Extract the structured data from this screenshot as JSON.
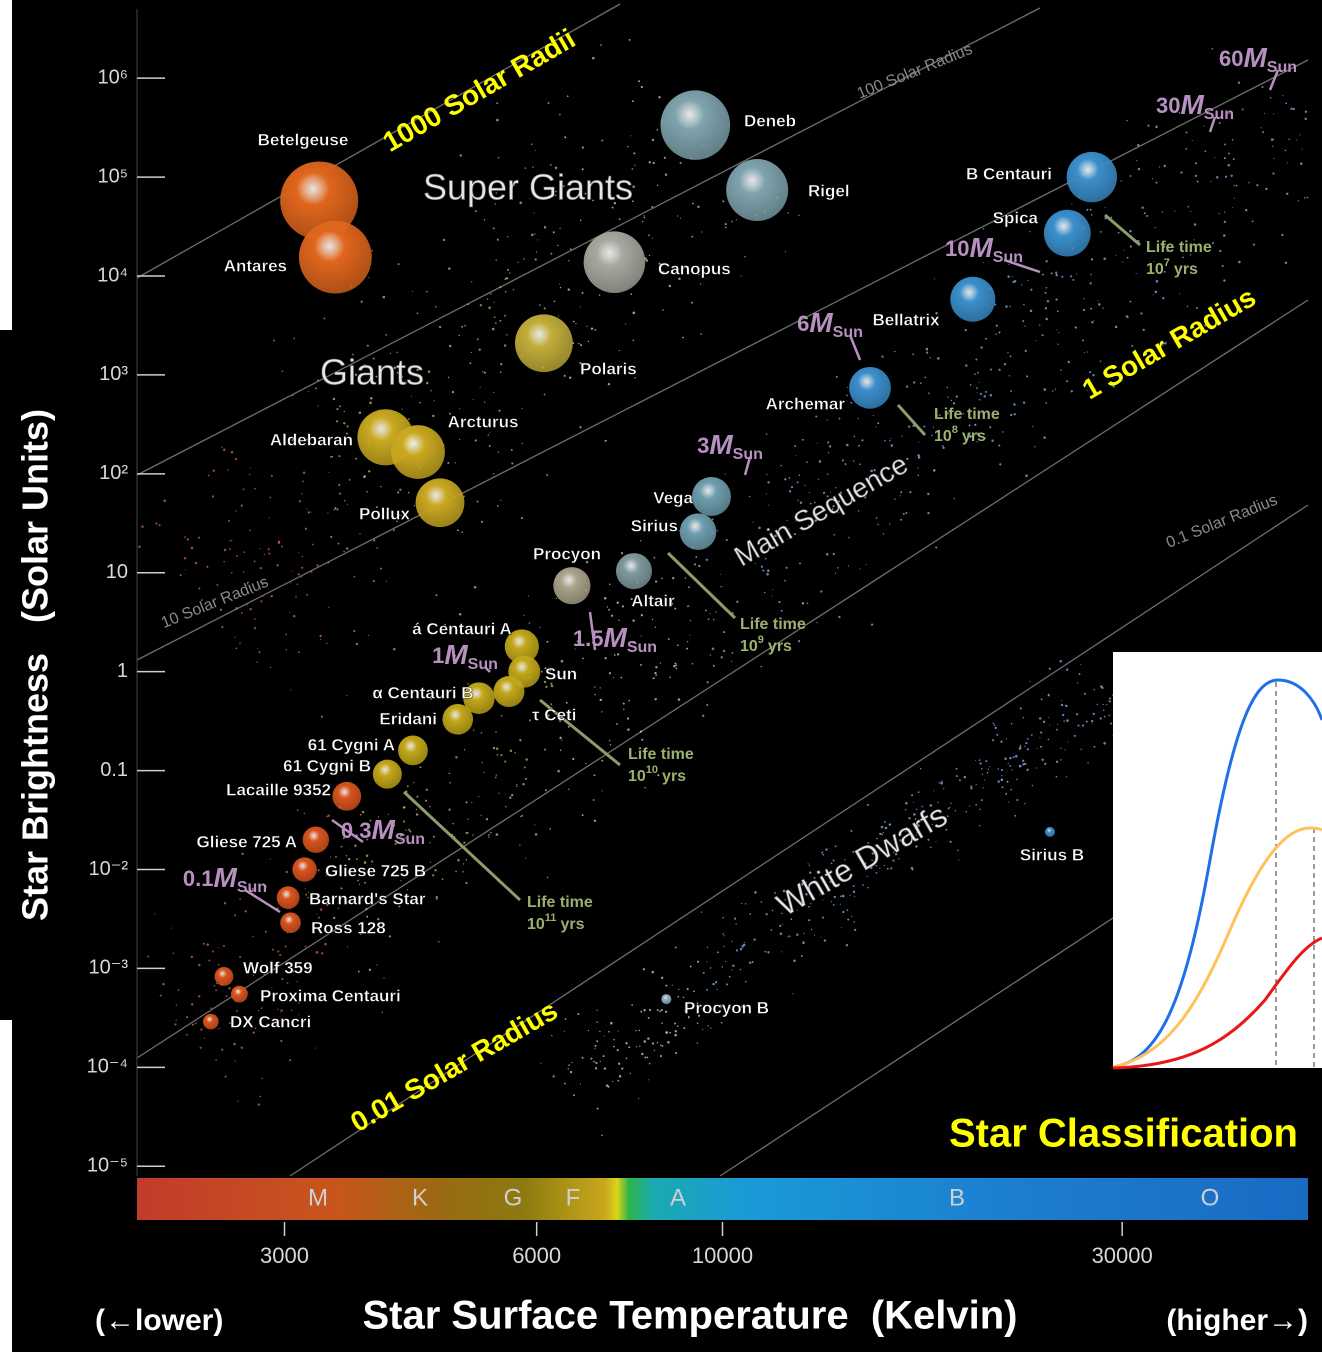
{
  "chart_data": {
    "type": "scatter",
    "title": "Star Classification",
    "x_title": "Star Surface Temperature  (Kelvin)",
    "y_title": "Star Brightness   (Solar Units)",
    "x_low": "(←lower)",
    "x_high": "(higher→)",
    "xscale": "log",
    "yscale": "log",
    "xlim": [
      2000,
      50000
    ],
    "ylim": [
      3e-06,
      5000000
    ],
    "xticks": [
      3000,
      6000,
      10000,
      30000
    ],
    "yticks": [
      {
        "value": 1000000,
        "label": "10⁶"
      },
      {
        "value": 100000,
        "label": "10⁵"
      },
      {
        "value": 10000,
        "label": "10⁴"
      },
      {
        "value": 1000,
        "label": "10³"
      },
      {
        "value": 100,
        "label": "10²"
      },
      10,
      1,
      0.1,
      {
        "value": 0.01,
        "label": "10⁻²"
      },
      {
        "value": 0.001,
        "label": "10⁻³"
      },
      {
        "value": 0.0001,
        "label": "10⁻⁴"
      },
      {
        "value": 1e-05,
        "label": "10⁻⁵"
      }
    ],
    "point_labels": [
      "Betelgeuse",
      "Antares",
      "Deneb",
      "Rigel",
      "Canopus",
      "Polaris",
      "B Centauri",
      "Spica",
      "Bellatrix",
      "Archemar",
      "Aldebaran",
      "Arcturus",
      "Pollux",
      "Vega",
      "Sirius",
      "Procyon",
      "Altair",
      "á Centauri A",
      "Sun",
      "α Centauri B",
      "τ Ceti",
      "Eridani",
      "61 Cygni A",
      "61 Cygni B",
      "Lacaille 9352",
      "Gliese 725 A",
      "Gliese 725 B",
      "Barnard's Star",
      "Ross 128",
      "Wolf 359",
      "Proxima Centauri",
      "DX Cancri",
      "Sirius B",
      "Procyon B"
    ],
    "x": [
      3300,
      3450,
      9280,
      11000,
      7430,
      6120,
      27600,
      25800,
      19900,
      15000,
      3960,
      4330,
      4600,
      9700,
      9350,
      6610,
      7840,
      5760,
      5800,
      5120,
      5560,
      4830,
      4270,
      3980,
      3560,
      3270,
      3170,
      3030,
      3050,
      2540,
      2650,
      2450,
      24600,
      8570
    ],
    "values": [
      58000,
      15500,
      335000,
      74000,
      13800,
      2090,
      100000,
      27100,
      5820,
      740,
      234,
      166,
      51,
      59,
      26,
      7.4,
      10.4,
      1.8,
      1,
      0.54,
      0.63,
      0.33,
      0.16,
      0.092,
      0.055,
      0.02,
      0.01,
      0.0052,
      0.0029,
      0.00083,
      0.00055,
      0.00029,
      0.024,
      0.00049
    ],
    "colors": [
      "#e0661c",
      "#e0661c",
      "#7fa3ad",
      "#7fa3ad",
      "#a8a8a0",
      "#c2ad3a",
      "#3b8fcc",
      "#3b8fcc",
      "#3b8fcc",
      "#3b8fcc",
      "#c9a820",
      "#c9a820",
      "#c9a820",
      "#6e9eae",
      "#6e9eae",
      "#a9a38a",
      "#7f9aa0",
      "#c2a719",
      "#c2a719",
      "#c2a719",
      "#c2a719",
      "#c2a719",
      "#c2a719",
      "#c2a719",
      "#d9541e",
      "#d9541e",
      "#d9541e",
      "#d9541e",
      "#d9541e",
      "#d9541e",
      "#d9541e",
      "#d9541e",
      "#3a8fc7",
      "#8fb3c0"
    ],
    "spectral_classes": [
      "M",
      "K",
      "G",
      "F",
      "A",
      "B",
      "O"
    ],
    "annotations": [
      "1000 Solar Radii",
      "100 Solar Radius",
      "10 Solar Radius",
      "1 Solar Radius",
      "0.1 Solar Radius",
      "0.01 Solar Radius"
    ],
    "regions": [
      "Super Giants",
      "Giants",
      "Main Sequence",
      "White Dwarfs"
    ],
    "mass_symbol": "M",
    "mass_sub": "Sun",
    "masses": [
      60,
      30,
      10,
      6,
      3,
      1.5,
      1,
      0.3,
      0.1
    ],
    "lifetime_label": "Life time",
    "lifetime_base": 10,
    "lifetime_exponents": [
      7,
      8,
      9,
      10,
      11
    ],
    "lifetime_unit": "yrs"
  }
}
